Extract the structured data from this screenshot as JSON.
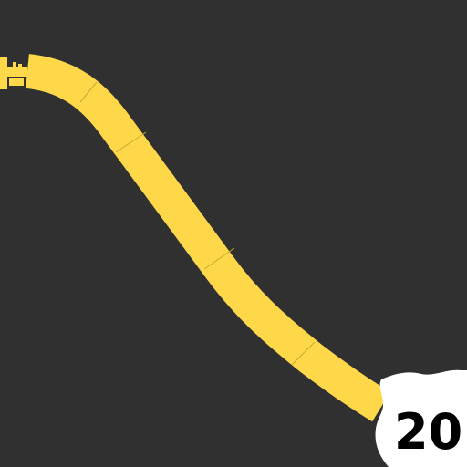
{
  "map": {
    "background_color": "#303030",
    "road": {
      "type": "highway",
      "color": "#ffd84a",
      "segment_divider_color": "#c9a830"
    },
    "route_shield": {
      "type": "us-highway-shield",
      "number_text": "20",
      "shield_color": "#ffffff",
      "text_color": "#000000"
    }
  }
}
